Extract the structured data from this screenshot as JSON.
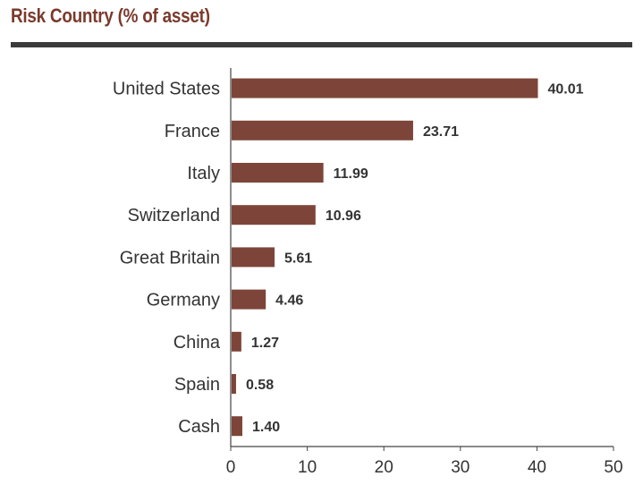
{
  "colors": {
    "title": "#7a3a2c",
    "rule": "#3b3b3b",
    "bar": "#7d4539",
    "axis": "#444444",
    "text": "#333333"
  },
  "chart_data": {
    "type": "bar",
    "orientation": "horizontal",
    "title": "Risk Country (% of asset)",
    "categories": [
      "United States",
      "France",
      "Italy",
      "Switzerland",
      "Great Britain",
      "Germany",
      "China",
      "Spain",
      "Cash"
    ],
    "values": [
      40.01,
      23.71,
      11.99,
      10.96,
      5.61,
      4.46,
      1.27,
      0.58,
      1.4
    ],
    "value_labels": [
      "40.01",
      "23.71",
      "11.99",
      "10.96",
      "5.61",
      "4.46",
      "1.27",
      "0.58",
      "1.40"
    ],
    "xlim": [
      0,
      50
    ],
    "xticks": [
      "0",
      "10",
      "20",
      "30",
      "40",
      "50"
    ],
    "grid": false,
    "legend": "none"
  }
}
